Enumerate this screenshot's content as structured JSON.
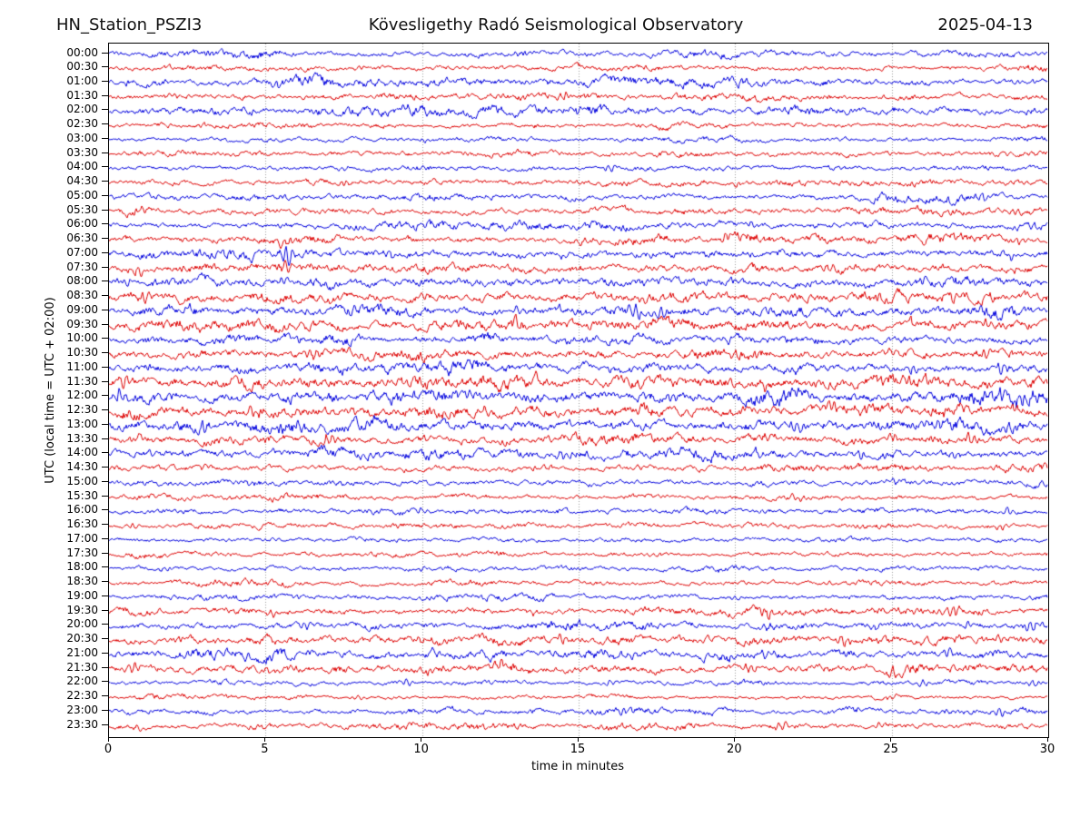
{
  "header": {
    "station": "HN_Station_PSZI3",
    "observatory": "Kövesligethy Radó Seismological Observatory",
    "date": "2025-04-13"
  },
  "axes": {
    "xlabel": "time in minutes",
    "ylabel": "UTC (local time = UTC + 02:00)",
    "x_ticks": [
      0,
      5,
      10,
      15,
      20,
      25,
      30
    ],
    "x_range": [
      0,
      30
    ],
    "grid_minutes": [
      5,
      10,
      15,
      20,
      25
    ],
    "grid_on": true,
    "grid_color": "#999999",
    "frame_color": "#000000"
  },
  "chart_data": {
    "type": "line",
    "subtype": "helicorder-daily-seismogram",
    "minutes_per_row": 30,
    "rows_count": 48,
    "colors": {
      "even_rows": "#0000dd",
      "odd_rows": "#dd0000"
    },
    "rows": [
      {
        "label": "00:00",
        "color": "#0000dd",
        "amp": 2.2,
        "spikes": [
          [
            13,
            2
          ]
        ]
      },
      {
        "label": "00:30",
        "color": "#dd0000",
        "amp": 1.8,
        "spikes": [
          [
            8,
            2
          ]
        ]
      },
      {
        "label": "01:00",
        "color": "#0000dd",
        "amp": 2.6,
        "spikes": [
          [
            5.4,
            4
          ],
          [
            14,
            2
          ]
        ]
      },
      {
        "label": "01:30",
        "color": "#dd0000",
        "amp": 2.2,
        "spikes": [
          [
            2,
            2
          ],
          [
            14.5,
            3
          ]
        ]
      },
      {
        "label": "02:00",
        "color": "#0000dd",
        "amp": 2.8,
        "spikes": [
          [
            9.5,
            3
          ],
          [
            15,
            2
          ]
        ]
      },
      {
        "label": "02:30",
        "color": "#dd0000",
        "amp": 1.9,
        "spikes": [
          [
            3,
            2
          ]
        ]
      },
      {
        "label": "03:00",
        "color": "#0000dd",
        "amp": 1.6,
        "spikes": [
          [
            10,
            1.5
          ]
        ]
      },
      {
        "label": "03:30",
        "color": "#dd0000",
        "amp": 2.0,
        "spikes": [
          [
            4,
            2
          ]
        ]
      },
      {
        "label": "04:00",
        "color": "#0000dd",
        "amp": 1.9,
        "spikes": [
          [
            16,
            3
          ],
          [
            7.5,
            2
          ]
        ]
      },
      {
        "label": "04:30",
        "color": "#dd0000",
        "amp": 2.2,
        "spikes": [
          [
            7.5,
            3
          ],
          [
            20,
            2
          ]
        ]
      },
      {
        "label": "05:00",
        "color": "#0000dd",
        "amp": 2.2,
        "spikes": [
          [
            28,
            3
          ],
          [
            10,
            2
          ]
        ]
      },
      {
        "label": "05:30",
        "color": "#dd0000",
        "amp": 2.4,
        "spikes": [
          [
            1,
            3
          ],
          [
            29,
            3
          ]
        ]
      },
      {
        "label": "06:00",
        "color": "#0000dd",
        "amp": 2.4,
        "spikes": [
          [
            20.5,
            3
          ],
          [
            26,
            2
          ]
        ]
      },
      {
        "label": "06:30",
        "color": "#dd0000",
        "amp": 2.6,
        "spikes": [
          [
            5.6,
            5
          ],
          [
            19.7,
            4
          ],
          [
            29,
            3
          ]
        ]
      },
      {
        "label": "07:00",
        "color": "#0000dd",
        "amp": 3.0,
        "spikes": [
          [
            5.7,
            9
          ],
          [
            9,
            4
          ],
          [
            28.8,
            4
          ]
        ]
      },
      {
        "label": "07:30",
        "color": "#dd0000",
        "amp": 3.2,
        "spikes": [
          [
            1,
            5
          ],
          [
            5.7,
            6
          ],
          [
            23,
            4
          ]
        ]
      },
      {
        "label": "08:00",
        "color": "#0000dd",
        "amp": 3.2,
        "spikes": [
          [
            0.6,
            4
          ],
          [
            5.6,
            5
          ],
          [
            26,
            3
          ]
        ]
      },
      {
        "label": "08:30",
        "color": "#dd0000",
        "amp": 3.6,
        "spikes": [
          [
            1.2,
            6
          ],
          [
            17,
            4
          ],
          [
            27,
            4
          ]
        ]
      },
      {
        "label": "09:00",
        "color": "#0000dd",
        "amp": 3.6,
        "spikes": [
          [
            16.8,
            8
          ],
          [
            17.6,
            7
          ],
          [
            13,
            4
          ]
        ]
      },
      {
        "label": "09:30",
        "color": "#dd0000",
        "amp": 3.6,
        "spikes": [
          [
            13,
            4
          ],
          [
            25.6,
            4
          ],
          [
            28,
            4
          ]
        ]
      },
      {
        "label": "10:00",
        "color": "#0000dd",
        "amp": 3.2,
        "spikes": [
          [
            6,
            3
          ],
          [
            19.5,
            4
          ]
        ]
      },
      {
        "label": "10:30",
        "color": "#dd0000",
        "amp": 3.2,
        "spikes": [
          [
            6.5,
            4
          ],
          [
            25,
            4
          ],
          [
            28,
            5
          ]
        ]
      },
      {
        "label": "11:00",
        "color": "#0000dd",
        "amp": 3.6,
        "spikes": [
          [
            25.6,
            5
          ],
          [
            28.5,
            6
          ],
          [
            16,
            3
          ]
        ]
      },
      {
        "label": "11:30",
        "color": "#dd0000",
        "amp": 4.0,
        "spikes": [
          [
            0.5,
            6
          ],
          [
            25.5,
            5
          ],
          [
            21,
            4
          ]
        ]
      },
      {
        "label": "12:00",
        "color": "#0000dd",
        "amp": 4.0,
        "spikes": [
          [
            0.3,
            7
          ],
          [
            11.5,
            4
          ],
          [
            18,
            4
          ]
        ]
      },
      {
        "label": "12:30",
        "color": "#dd0000",
        "amp": 4.2,
        "spikes": [
          [
            12,
            6
          ],
          [
            4.5,
            4
          ],
          [
            23,
            4
          ]
        ]
      },
      {
        "label": "13:00",
        "color": "#0000dd",
        "amp": 3.8,
        "spikes": [
          [
            3,
            5
          ],
          [
            22,
            4
          ],
          [
            26.5,
            4
          ]
        ]
      },
      {
        "label": "13:30",
        "color": "#dd0000",
        "amp": 3.2,
        "spikes": [
          [
            7,
            7
          ],
          [
            21,
            4
          ],
          [
            25,
            4
          ],
          [
            27.5,
            4
          ]
        ]
      },
      {
        "label": "14:00",
        "color": "#0000dd",
        "amp": 3.2,
        "spikes": [
          [
            14.5,
            4
          ],
          [
            21,
            3
          ],
          [
            24,
            3
          ],
          [
            27,
            4
          ]
        ]
      },
      {
        "label": "14:30",
        "color": "#dd0000",
        "amp": 2.4,
        "spikes": [
          [
            3,
            3
          ],
          [
            17,
            2
          ]
        ]
      },
      {
        "label": "15:00",
        "color": "#0000dd",
        "amp": 2.2,
        "spikes": [
          [
            4.5,
            2
          ],
          [
            25,
            2
          ]
        ]
      },
      {
        "label": "15:30",
        "color": "#dd0000",
        "amp": 1.8,
        "spikes": [
          [
            2.5,
            2
          ],
          [
            22,
            3
          ]
        ]
      },
      {
        "label": "16:00",
        "color": "#0000dd",
        "amp": 2.0,
        "spikes": [
          [
            10,
            3
          ],
          [
            28.7,
            4
          ]
        ]
      },
      {
        "label": "16:30",
        "color": "#dd0000",
        "amp": 1.8,
        "spikes": [
          [
            0.8,
            2
          ],
          [
            28.5,
            3
          ]
        ]
      },
      {
        "label": "17:00",
        "color": "#0000dd",
        "amp": 1.6,
        "spikes": [
          [
            5.3,
            2
          ]
        ]
      },
      {
        "label": "17:30",
        "color": "#dd0000",
        "amp": 1.7,
        "spikes": [
          [
            17.5,
            2
          ]
        ]
      },
      {
        "label": "18:00",
        "color": "#0000dd",
        "amp": 1.8,
        "spikes": [
          [
            1.7,
            2
          ],
          [
            10,
            2
          ]
        ]
      },
      {
        "label": "18:30",
        "color": "#dd0000",
        "amp": 1.8,
        "spikes": [
          [
            23,
            3
          ]
        ]
      },
      {
        "label": "19:00",
        "color": "#0000dd",
        "amp": 1.8,
        "spikes": [
          [
            20,
            2
          ],
          [
            6,
            2
          ]
        ]
      },
      {
        "label": "19:30",
        "color": "#dd0000",
        "amp": 2.2,
        "spikes": [
          [
            5.2,
            4
          ],
          [
            13.5,
            3
          ],
          [
            21,
            4
          ],
          [
            27,
            4
          ]
        ]
      },
      {
        "label": "20:00",
        "color": "#0000dd",
        "amp": 2.6,
        "spikes": [
          [
            6.3,
            4
          ],
          [
            21,
            3
          ],
          [
            24.5,
            3
          ],
          [
            27.5,
            4
          ],
          [
            29.5,
            5
          ]
        ]
      },
      {
        "label": "20:30",
        "color": "#dd0000",
        "amp": 3.0,
        "spikes": [
          [
            14.5,
            4
          ],
          [
            23.5,
            5
          ],
          [
            28.5,
            4
          ],
          [
            10,
            3
          ]
        ]
      },
      {
        "label": "21:00",
        "color": "#0000dd",
        "amp": 3.0,
        "spikes": [
          [
            10.5,
            3
          ],
          [
            16,
            3
          ],
          [
            21,
            3
          ],
          [
            26.8,
            5
          ]
        ]
      },
      {
        "label": "21:30",
        "color": "#dd0000",
        "amp": 3.0,
        "spikes": [
          [
            0.8,
            5
          ],
          [
            5.2,
            4
          ],
          [
            12.5,
            5
          ],
          [
            20.5,
            4
          ],
          [
            25,
            4
          ]
        ]
      },
      {
        "label": "22:00",
        "color": "#0000dd",
        "amp": 1.6,
        "spikes": [
          [
            9.5,
            3
          ],
          [
            16,
            3
          ],
          [
            26,
            3
          ],
          [
            29.5,
            3
          ]
        ]
      },
      {
        "label": "22:30",
        "color": "#dd0000",
        "amp": 1.4,
        "spikes": [
          [
            8,
            2
          ],
          [
            25,
            2
          ]
        ]
      },
      {
        "label": "23:00",
        "color": "#0000dd",
        "amp": 2.0,
        "spikes": [
          [
            16.5,
            3
          ],
          [
            24,
            2
          ],
          [
            28.5,
            4
          ]
        ]
      },
      {
        "label": "23:30",
        "color": "#dd0000",
        "amp": 2.0,
        "spikes": [
          [
            1,
            3
          ],
          [
            12,
            2
          ],
          [
            21.5,
            3
          ],
          [
            24.5,
            3
          ]
        ]
      }
    ]
  }
}
